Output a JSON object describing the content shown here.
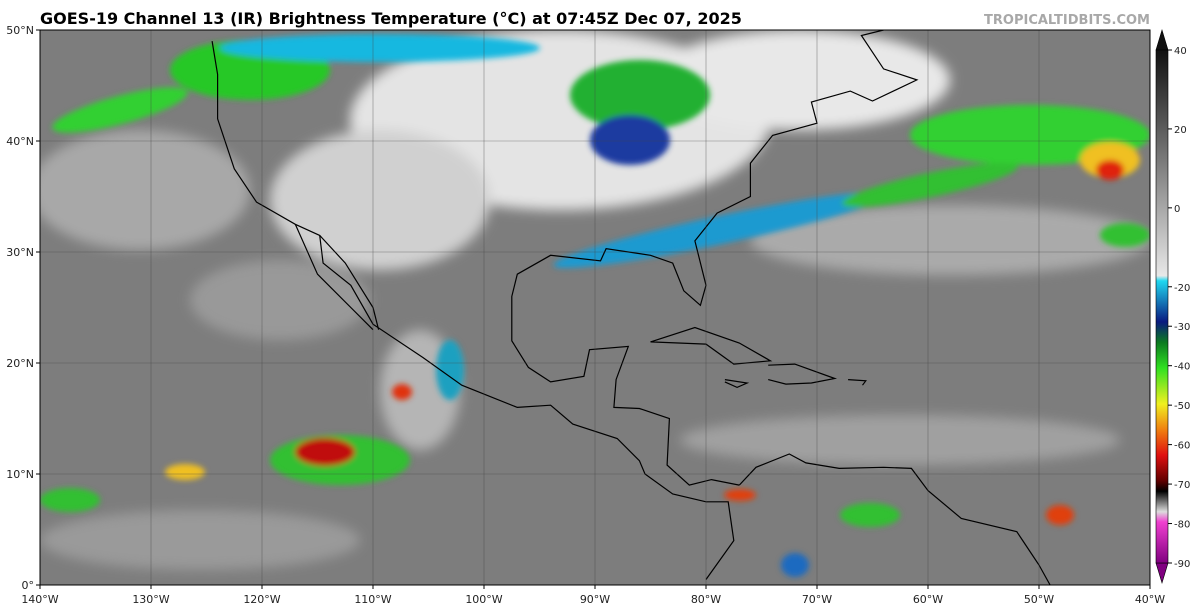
{
  "header": {
    "title": "GOES-19 Channel 13 (IR) Brightness Temperature (°C) at 07:45Z Dec 07, 2025",
    "credit": "TROPICALTIDBITS.COM"
  },
  "map": {
    "lonlim": [
      -140,
      -40
    ],
    "latlim": [
      0,
      50
    ],
    "lon_ticks": [
      {
        "value": -140,
        "label": "140°W"
      },
      {
        "value": -130,
        "label": "130°W"
      },
      {
        "value": -120,
        "label": "120°W"
      },
      {
        "value": -110,
        "label": "110°W"
      },
      {
        "value": -100,
        "label": "100°W"
      },
      {
        "value": -90,
        "label": "90°W"
      },
      {
        "value": -80,
        "label": "80°W"
      },
      {
        "value": -70,
        "label": "70°W"
      },
      {
        "value": -60,
        "label": "60°W"
      },
      {
        "value": -50,
        "label": "50°W"
      },
      {
        "value": -40,
        "label": "40°W"
      }
    ],
    "lat_ticks": [
      {
        "value": 50,
        "label": "50°N"
      },
      {
        "value": 40,
        "label": "40°N"
      },
      {
        "value": 30,
        "label": "30°N"
      },
      {
        "value": 20,
        "label": "20°N"
      },
      {
        "value": 10,
        "label": "10°N"
      },
      {
        "value": 0,
        "label": "0°"
      }
    ]
  },
  "colorbar": {
    "lim": [
      -90,
      40
    ],
    "ticks": [
      40,
      20,
      0,
      -20,
      -30,
      -40,
      -50,
      -60,
      -70,
      -80,
      -90
    ]
  }
}
